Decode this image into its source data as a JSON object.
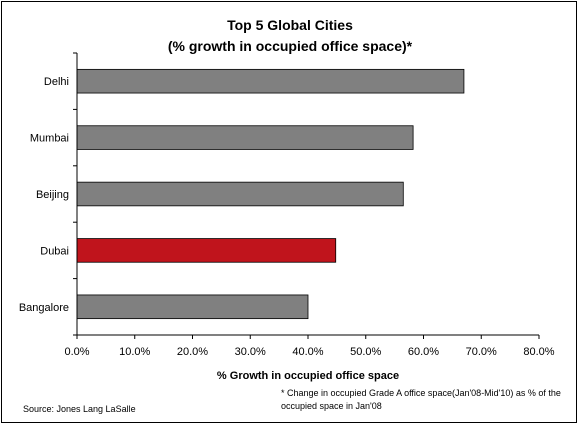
{
  "chart_data": {
    "type": "bar",
    "orientation": "horizontal",
    "title": "Top 5 Global Cities",
    "subtitle": "(% growth in occupied office space)*",
    "categories": [
      "Delhi",
      "Mumbai",
      "Beijing",
      "Dubai",
      "Bangalore"
    ],
    "values": [
      67.0,
      58.2,
      56.5,
      44.8,
      40.0
    ],
    "highlight_category": "Dubai",
    "colors": {
      "bar": "#808080",
      "highlight": "#C0141C",
      "bar_border": "#000000"
    },
    "xlabel": "% Growth in occupied office space",
    "ylabel": "",
    "xlim": [
      0,
      80
    ],
    "x_ticks": [
      "0.0%",
      "10.0%",
      "20.0%",
      "30.0%",
      "40.0%",
      "50.0%",
      "60.0%",
      "70.0%",
      "80.0%"
    ],
    "grid": false,
    "legend": "none"
  },
  "footnote": {
    "line1": "* Change in occupied Grade A  office space(Jan'08-Mid'10) as %  of the",
    "line2": "occupied space in Jan'08"
  },
  "source": "Source:  Jones Lang LaSalle"
}
